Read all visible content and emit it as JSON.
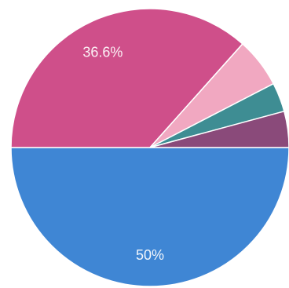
{
  "chart_data": {
    "type": "pie",
    "title": "",
    "slices": [
      {
        "value": 50,
        "label": "50%",
        "color": "#3f86d4"
      },
      {
        "value": 36.6,
        "label": "36.6%",
        "color": "#cf4f8a"
      },
      {
        "value": 5.8,
        "label": "",
        "color": "#f1a8c1"
      },
      {
        "value": 3.4,
        "label": "",
        "color": "#3e8d93"
      },
      {
        "value": 4.2,
        "label": "",
        "color": "#8a4a7a"
      }
    ],
    "start_angle_deg": 0,
    "direction": "clockwise-from-east-through-south",
    "legend": "none"
  }
}
